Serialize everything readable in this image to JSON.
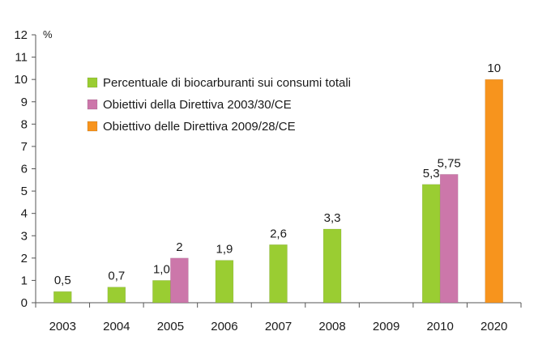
{
  "chart_data": {
    "type": "bar",
    "categories": [
      "2003",
      "2004",
      "2005",
      "2006",
      "2007",
      "2008",
      "2009",
      "2010",
      "2020"
    ],
    "ylabel": "%",
    "ylim": [
      0,
      12
    ],
    "yticks": [
      0,
      1,
      2,
      3,
      4,
      5,
      6,
      7,
      8,
      9,
      10,
      11,
      12
    ],
    "grid": false,
    "legend_position": "upper-left",
    "series": [
      {
        "name": "Percentuale di biocarburanti sui consumi totali",
        "color": "#9ACD32",
        "values": [
          0.5,
          0.7,
          1.0,
          1.9,
          2.6,
          3.3,
          null,
          5.3,
          null
        ],
        "labels": [
          "0,5",
          "0,7",
          "1,0",
          "1,9",
          "2,6",
          "3,3",
          "",
          "5,3",
          ""
        ]
      },
      {
        "name": "Obiettivi della Direttiva 2003/30/CE",
        "color": "#CC77AA",
        "values": [
          null,
          null,
          2,
          null,
          null,
          null,
          null,
          5.75,
          null
        ],
        "labels": [
          "",
          "",
          "2",
          "",
          "",
          "",
          "",
          "5,75",
          ""
        ]
      },
      {
        "name": "Obiettivo delle Direttiva 2009/28/CE",
        "color": "#F7941D",
        "values": [
          null,
          null,
          null,
          null,
          null,
          null,
          null,
          null,
          10
        ],
        "labels": [
          "",
          "",
          "",
          "",
          "",
          "",
          "",
          "",
          "10"
        ]
      }
    ]
  }
}
